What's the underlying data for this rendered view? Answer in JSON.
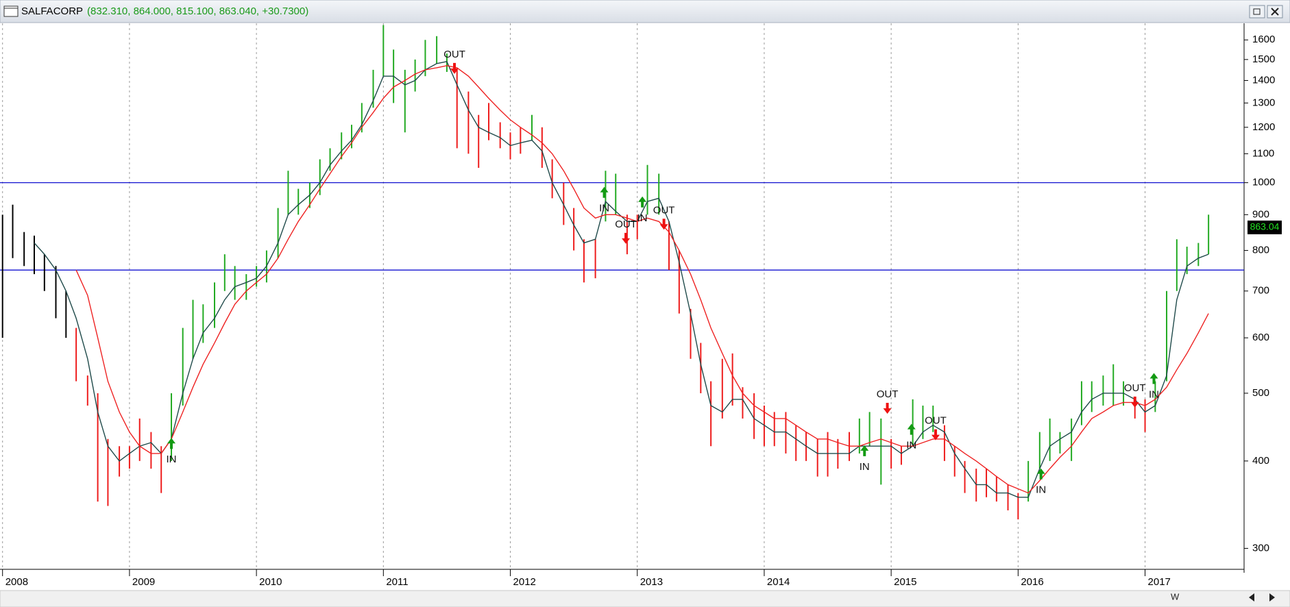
{
  "chart_data": {
    "type": "ohlc",
    "title": "SALFACORP",
    "quote": "(832.310, 864.000, 815.100, 863.040, +30.7300)",
    "log_y": true,
    "xlim": [
      2007.98,
      2017.78
    ],
    "xticks": [
      2008,
      2009,
      2010,
      2011,
      2012,
      2013,
      2014,
      2015,
      2016,
      2017
    ],
    "ylim": [
      280,
      1690
    ],
    "yticks": [
      300,
      400,
      500,
      600,
      700,
      800,
      900,
      1000,
      1100,
      1200,
      1300,
      1400,
      1500,
      1600
    ],
    "grid": true,
    "hlines": [
      1000,
      750
    ],
    "hline_color": "#1010d0",
    "last_price": 863.04,
    "toolbar_label": "W",
    "bars": {
      "x": [
        2008.0,
        2008.08,
        2008.17,
        2008.25,
        2008.33,
        2008.42,
        2008.5,
        2008.58,
        2008.67,
        2008.75,
        2008.83,
        2008.92,
        2009.0,
        2009.08,
        2009.17,
        2009.25,
        2009.33,
        2009.42,
        2009.5,
        2009.58,
        2009.67,
        2009.75,
        2009.83,
        2009.92,
        2010.0,
        2010.08,
        2010.17,
        2010.25,
        2010.33,
        2010.42,
        2010.5,
        2010.58,
        2010.67,
        2010.75,
        2010.83,
        2010.92,
        2011.0,
        2011.08,
        2011.17,
        2011.25,
        2011.33,
        2011.42,
        2011.5,
        2011.58,
        2011.67,
        2011.75,
        2011.83,
        2011.92,
        2012.0,
        2012.08,
        2012.17,
        2012.25,
        2012.33,
        2012.42,
        2012.5,
        2012.58,
        2012.67,
        2012.75,
        2012.83,
        2012.92,
        2013.0,
        2013.08,
        2013.17,
        2013.25,
        2013.33,
        2013.42,
        2013.5,
        2013.58,
        2013.67,
        2013.75,
        2013.83,
        2013.92,
        2014.0,
        2014.08,
        2014.17,
        2014.25,
        2014.33,
        2014.42,
        2014.5,
        2014.58,
        2014.67,
        2014.75,
        2014.83,
        2014.92,
        2015.0,
        2015.08,
        2015.17,
        2015.25,
        2015.33,
        2015.42,
        2015.5,
        2015.58,
        2015.67,
        2015.75,
        2015.83,
        2015.92,
        2016.0,
        2016.08,
        2016.17,
        2016.25,
        2016.33,
        2016.42,
        2016.5,
        2016.58,
        2016.67,
        2016.75,
        2016.83,
        2016.92,
        2017.0,
        2017.08,
        2017.17,
        2017.25,
        2017.33,
        2017.42,
        2017.5
      ],
      "high": [
        900,
        930,
        850,
        840,
        790,
        760,
        700,
        620,
        530,
        500,
        430,
        420,
        420,
        460,
        440,
        420,
        500,
        620,
        680,
        670,
        720,
        790,
        760,
        740,
        760,
        800,
        920,
        1040,
        980,
        1000,
        1080,
        1120,
        1180,
        1210,
        1300,
        1450,
        1680,
        1550,
        1450,
        1500,
        1600,
        1620,
        1530,
        1450,
        1350,
        1250,
        1300,
        1220,
        1180,
        1200,
        1250,
        1200,
        1080,
        1000,
        920,
        830,
        830,
        1040,
        1030,
        900,
        900,
        1060,
        1030,
        880,
        800,
        660,
        590,
        520,
        560,
        570,
        510,
        500,
        480,
        470,
        470,
        450,
        440,
        430,
        440,
        430,
        440,
        460,
        470,
        460,
        430,
        420,
        490,
        480,
        480,
        450,
        420,
        400,
        390,
        390,
        380,
        370,
        360,
        400,
        440,
        460,
        440,
        460,
        520,
        520,
        530,
        550,
        520,
        490,
        490,
        520,
        700,
        830,
        810,
        820,
        900
      ],
      "low": [
        600,
        780,
        760,
        740,
        700,
        640,
        600,
        520,
        480,
        350,
        345,
        380,
        390,
        400,
        390,
        360,
        400,
        480,
        560,
        590,
        620,
        700,
        680,
        680,
        710,
        720,
        780,
        900,
        900,
        920,
        960,
        1040,
        1080,
        1120,
        1180,
        1280,
        1420,
        1300,
        1180,
        1350,
        1420,
        1480,
        1440,
        1120,
        1100,
        1050,
        1150,
        1120,
        1080,
        1100,
        1150,
        1050,
        950,
        870,
        800,
        720,
        730,
        880,
        900,
        790,
        830,
        900,
        900,
        750,
        650,
        560,
        500,
        420,
        460,
        480,
        460,
        430,
        420,
        420,
        410,
        400,
        400,
        380,
        380,
        390,
        400,
        410,
        420,
        370,
        390,
        395,
        420,
        430,
        440,
        400,
        380,
        360,
        350,
        355,
        350,
        340,
        330,
        350,
        390,
        400,
        410,
        400,
        450,
        470,
        480,
        480,
        480,
        460,
        440,
        470,
        520,
        700,
        740,
        760,
        790
      ],
      "color": [
        "#000000",
        "#000000",
        "#000000",
        "#000000",
        "#000000",
        "#000000",
        "#000000",
        "#ee1c1c",
        "#ee1c1c",
        "#ee1c1c",
        "#ee1c1c",
        "#ee1c1c",
        "#ee1c1c",
        "#ee1c1c",
        "#ee1c1c",
        "#ee1c1c",
        "#22aa22",
        "#22aa22",
        "#22aa22",
        "#22aa22",
        "#22aa22",
        "#22aa22",
        "#22aa22",
        "#22aa22",
        "#22aa22",
        "#22aa22",
        "#22aa22",
        "#22aa22",
        "#22aa22",
        "#22aa22",
        "#22aa22",
        "#22aa22",
        "#22aa22",
        "#22aa22",
        "#22aa22",
        "#22aa22",
        "#22aa22",
        "#22aa22",
        "#22aa22",
        "#22aa22",
        "#22aa22",
        "#22aa22",
        "#22aa22",
        "#ee1c1c",
        "#ee1c1c",
        "#ee1c1c",
        "#ee1c1c",
        "#ee1c1c",
        "#ee1c1c",
        "#ee1c1c",
        "#22aa22",
        "#ee1c1c",
        "#ee1c1c",
        "#ee1c1c",
        "#ee1c1c",
        "#ee1c1c",
        "#ee1c1c",
        "#22aa22",
        "#22aa22",
        "#ee1c1c",
        "#ee1c1c",
        "#22aa22",
        "#22aa22",
        "#ee1c1c",
        "#ee1c1c",
        "#ee1c1c",
        "#ee1c1c",
        "#ee1c1c",
        "#ee1c1c",
        "#ee1c1c",
        "#ee1c1c",
        "#ee1c1c",
        "#ee1c1c",
        "#ee1c1c",
        "#ee1c1c",
        "#ee1c1c",
        "#ee1c1c",
        "#ee1c1c",
        "#ee1c1c",
        "#ee1c1c",
        "#ee1c1c",
        "#22aa22",
        "#22aa22",
        "#22aa22",
        "#ee1c1c",
        "#ee1c1c",
        "#22aa22",
        "#22aa22",
        "#22aa22",
        "#ee1c1c",
        "#ee1c1c",
        "#ee1c1c",
        "#ee1c1c",
        "#ee1c1c",
        "#ee1c1c",
        "#ee1c1c",
        "#ee1c1c",
        "#22aa22",
        "#22aa22",
        "#22aa22",
        "#22aa22",
        "#22aa22",
        "#22aa22",
        "#22aa22",
        "#22aa22",
        "#22aa22",
        "#22aa22",
        "#ee1c1c",
        "#ee1c1c",
        "#22aa22",
        "#22aa22",
        "#22aa22",
        "#22aa22",
        "#22aa22",
        "#22aa22"
      ]
    },
    "series": [
      {
        "color": "#1f4a4a",
        "x": [
          2008.25,
          2008.33,
          2008.42,
          2008.5,
          2008.58,
          2008.67,
          2008.75,
          2008.83,
          2008.92,
          2009.0,
          2009.08,
          2009.17,
          2009.25,
          2009.33,
          2009.42,
          2009.5,
          2009.58,
          2009.67,
          2009.75,
          2009.83,
          2009.92,
          2010.0,
          2010.08,
          2010.17,
          2010.25,
          2010.33,
          2010.42,
          2010.5,
          2010.58,
          2010.67,
          2010.75,
          2010.83,
          2010.92,
          2011.0,
          2011.08,
          2011.17,
          2011.25,
          2011.33,
          2011.42,
          2011.5,
          2011.58,
          2011.67,
          2011.75,
          2011.83,
          2011.92,
          2012.0,
          2012.08,
          2012.17,
          2012.25,
          2012.33,
          2012.42,
          2012.5,
          2012.58,
          2012.67,
          2012.75,
          2012.83,
          2012.92,
          2013.0,
          2013.08,
          2013.17,
          2013.25,
          2013.33,
          2013.42,
          2013.5,
          2013.58,
          2013.67,
          2013.75,
          2013.83,
          2013.92,
          2014.0,
          2014.08,
          2014.17,
          2014.25,
          2014.33,
          2014.42,
          2014.5,
          2014.58,
          2014.67,
          2014.75,
          2014.83,
          2014.92,
          2015.0,
          2015.08,
          2015.17,
          2015.25,
          2015.33,
          2015.42,
          2015.5,
          2015.58,
          2015.67,
          2015.75,
          2015.83,
          2015.92,
          2016.0,
          2016.08,
          2016.17,
          2016.25,
          2016.33,
          2016.42,
          2016.5,
          2016.58,
          2016.67,
          2016.75,
          2016.83,
          2016.92,
          2017.0,
          2017.08,
          2017.17,
          2017.25,
          2017.33,
          2017.42,
          2017.5
        ],
        "values": [
          820,
          790,
          750,
          700,
          640,
          560,
          470,
          420,
          400,
          410,
          420,
          425,
          410,
          430,
          500,
          560,
          610,
          640,
          680,
          710,
          720,
          730,
          760,
          820,
          900,
          930,
          960,
          1000,
          1060,
          1110,
          1150,
          1210,
          1310,
          1420,
          1420,
          1380,
          1400,
          1450,
          1480,
          1490,
          1380,
          1270,
          1200,
          1180,
          1160,
          1130,
          1140,
          1150,
          1110,
          1000,
          930,
          870,
          820,
          830,
          940,
          910,
          880,
          880,
          940,
          950,
          880,
          770,
          650,
          550,
          480,
          470,
          490,
          490,
          460,
          450,
          440,
          440,
          430,
          420,
          410,
          410,
          410,
          410,
          420,
          420,
          420,
          420,
          410,
          420,
          440,
          450,
          440,
          410,
          390,
          370,
          370,
          360,
          360,
          355,
          355,
          390,
          420,
          430,
          440,
          470,
          490,
          500,
          500,
          500,
          490,
          470,
          480,
          530,
          680,
          760,
          780,
          790
        ]
      },
      {
        "color": "#ee2222",
        "x": [
          2008.58,
          2008.67,
          2008.75,
          2008.83,
          2008.92,
          2009.0,
          2009.08,
          2009.17,
          2009.25,
          2009.33,
          2009.42,
          2009.5,
          2009.58,
          2009.67,
          2009.75,
          2009.83,
          2009.92,
          2010.0,
          2010.08,
          2010.17,
          2010.25,
          2010.33,
          2010.42,
          2010.5,
          2010.58,
          2010.67,
          2010.75,
          2010.83,
          2010.92,
          2011.0,
          2011.08,
          2011.17,
          2011.25,
          2011.33,
          2011.42,
          2011.5,
          2011.58,
          2011.67,
          2011.75,
          2011.83,
          2011.92,
          2012.0,
          2012.08,
          2012.17,
          2012.25,
          2012.33,
          2012.42,
          2012.5,
          2012.58,
          2012.67,
          2012.75,
          2012.83,
          2012.92,
          2013.0,
          2013.08,
          2013.17,
          2013.25,
          2013.33,
          2013.42,
          2013.5,
          2013.58,
          2013.67,
          2013.75,
          2013.83,
          2013.92,
          2014.0,
          2014.08,
          2014.17,
          2014.25,
          2014.33,
          2014.42,
          2014.5,
          2014.58,
          2014.67,
          2014.75,
          2014.83,
          2014.92,
          2015.0,
          2015.08,
          2015.17,
          2015.25,
          2015.33,
          2015.42,
          2015.5,
          2015.58,
          2015.67,
          2015.75,
          2015.83,
          2015.92,
          2016.0,
          2016.08,
          2016.17,
          2016.25,
          2016.33,
          2016.42,
          2016.5,
          2016.58,
          2016.67,
          2016.75,
          2016.83,
          2016.92,
          2017.0,
          2017.08,
          2017.17,
          2017.25,
          2017.33,
          2017.42,
          2017.5
        ],
        "values": [
          750,
          690,
          600,
          520,
          470,
          440,
          420,
          410,
          410,
          430,
          470,
          510,
          550,
          590,
          630,
          670,
          700,
          720,
          740,
          780,
          830,
          880,
          930,
          980,
          1030,
          1090,
          1140,
          1200,
          1260,
          1320,
          1370,
          1400,
          1430,
          1450,
          1460,
          1470,
          1460,
          1420,
          1370,
          1320,
          1270,
          1230,
          1200,
          1170,
          1140,
          1100,
          1040,
          980,
          920,
          890,
          900,
          900,
          890,
          880,
          890,
          880,
          850,
          800,
          740,
          680,
          620,
          570,
          530,
          500,
          480,
          470,
          460,
          460,
          450,
          440,
          430,
          430,
          425,
          420,
          420,
          425,
          430,
          425,
          420,
          420,
          425,
          430,
          430,
          420,
          410,
          400,
          390,
          380,
          370,
          365,
          360,
          375,
          390,
          405,
          420,
          440,
          460,
          470,
          480,
          485,
          485,
          480,
          490,
          510,
          540,
          570,
          610,
          650
        ]
      }
    ],
    "signals": [
      {
        "x": 2009.33,
        "price": 420,
        "label": "IN"
      },
      {
        "x": 2011.56,
        "price": 1470,
        "label": "OUT"
      },
      {
        "x": 2012.74,
        "price": 960,
        "label": "IN"
      },
      {
        "x": 2012.91,
        "price": 840,
        "label": "OUT"
      },
      {
        "x": 2013.04,
        "price": 930,
        "label": "IN"
      },
      {
        "x": 2013.21,
        "price": 880,
        "label": "OUT"
      },
      {
        "x": 2014.79,
        "price": 410,
        "label": "IN"
      },
      {
        "x": 2014.97,
        "price": 480,
        "label": "OUT"
      },
      {
        "x": 2015.16,
        "price": 440,
        "label": "IN"
      },
      {
        "x": 2015.35,
        "price": 440,
        "label": "OUT"
      },
      {
        "x": 2016.18,
        "price": 380,
        "label": "IN"
      },
      {
        "x": 2016.92,
        "price": 490,
        "label": "OUT"
      },
      {
        "x": 2017.07,
        "price": 520,
        "label": "IN"
      }
    ]
  }
}
